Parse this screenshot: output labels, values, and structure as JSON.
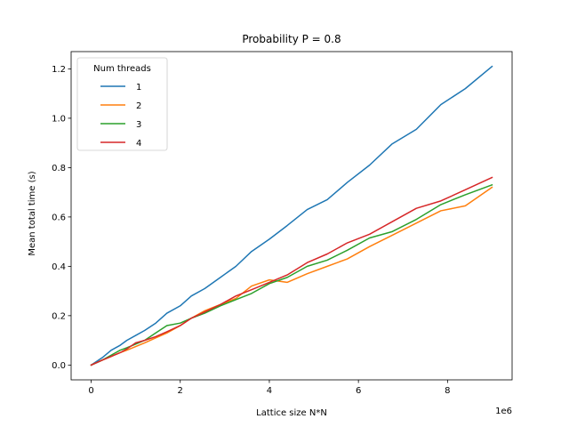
{
  "chart_data": {
    "type": "line",
    "title": "Probability P = 0.8",
    "xlabel": "Lattice size N*N",
    "ylabel": "Mean total time (s)",
    "x_offset_label": "1e6",
    "xlim": [
      -0.45,
      9.45
    ],
    "ylim": [
      -0.06,
      1.27
    ],
    "xticks": [
      0,
      2,
      4,
      6,
      8
    ],
    "xtick_labels": [
      "0",
      "2",
      "4",
      "6",
      "8"
    ],
    "yticks": [
      0.0,
      0.2,
      0.4,
      0.6,
      0.8,
      1.0,
      1.2
    ],
    "ytick_labels": [
      "0.0",
      "0.2",
      "0.4",
      "0.6",
      "0.8",
      "1.0",
      "1.2"
    ],
    "legend": {
      "title": "Num threads",
      "position": "top-left"
    },
    "series": [
      {
        "name": "1",
        "color": "#1f77b4",
        "x": [
          0,
          0.25,
          0.45,
          0.65,
          0.8,
          1.0,
          1.2,
          1.45,
          1.7,
          2.0,
          2.25,
          2.55,
          2.9,
          3.25,
          3.6,
          4.0,
          4.4,
          4.85,
          5.3,
          5.75,
          6.25,
          6.75,
          7.3,
          7.85,
          8.4,
          9.0
        ],
        "values": [
          0.0,
          0.03,
          0.06,
          0.08,
          0.1,
          0.12,
          0.14,
          0.17,
          0.21,
          0.24,
          0.28,
          0.31,
          0.355,
          0.4,
          0.46,
          0.51,
          0.565,
          0.63,
          0.67,
          0.74,
          0.81,
          0.895,
          0.955,
          1.055,
          1.12,
          1.21
        ]
      },
      {
        "name": "2",
        "color": "#ff7f0e",
        "x": [
          0,
          0.25,
          0.45,
          0.65,
          0.8,
          1.0,
          1.2,
          1.45,
          1.7,
          2.0,
          2.25,
          2.55,
          2.9,
          3.25,
          3.6,
          4.0,
          4.4,
          4.85,
          5.3,
          5.75,
          6.25,
          6.75,
          7.3,
          7.85,
          8.4,
          9.0
        ],
        "values": [
          0.0,
          0.02,
          0.035,
          0.05,
          0.06,
          0.075,
          0.09,
          0.11,
          0.13,
          0.16,
          0.19,
          0.22,
          0.245,
          0.27,
          0.32,
          0.345,
          0.335,
          0.37,
          0.4,
          0.43,
          0.48,
          0.525,
          0.575,
          0.625,
          0.645,
          0.72
        ]
      },
      {
        "name": "3",
        "color": "#2ca02c",
        "x": [
          0,
          0.25,
          0.45,
          0.65,
          0.8,
          1.0,
          1.2,
          1.45,
          1.7,
          2.0,
          2.25,
          2.55,
          2.9,
          3.25,
          3.6,
          4.0,
          4.4,
          4.85,
          5.3,
          5.75,
          6.25,
          6.75,
          7.3,
          7.85,
          8.4,
          9.0
        ],
        "values": [
          0.0,
          0.02,
          0.04,
          0.06,
          0.07,
          0.085,
          0.1,
          0.13,
          0.16,
          0.17,
          0.19,
          0.21,
          0.24,
          0.265,
          0.29,
          0.33,
          0.355,
          0.4,
          0.425,
          0.465,
          0.515,
          0.54,
          0.59,
          0.65,
          0.69,
          0.73
        ]
      },
      {
        "name": "4",
        "color": "#d62728",
        "x": [
          0,
          0.25,
          0.45,
          0.65,
          0.8,
          1.0,
          1.2,
          1.45,
          1.7,
          2.0,
          2.25,
          2.55,
          2.9,
          3.25,
          3.6,
          4.0,
          4.4,
          4.85,
          5.3,
          5.75,
          6.25,
          6.75,
          7.3,
          7.85,
          8.4,
          9.0
        ],
        "values": [
          0.0,
          0.02,
          0.035,
          0.05,
          0.065,
          0.09,
          0.1,
          0.115,
          0.135,
          0.16,
          0.19,
          0.215,
          0.245,
          0.28,
          0.305,
          0.335,
          0.365,
          0.415,
          0.45,
          0.495,
          0.53,
          0.58,
          0.635,
          0.665,
          0.71,
          0.76
        ]
      }
    ]
  }
}
